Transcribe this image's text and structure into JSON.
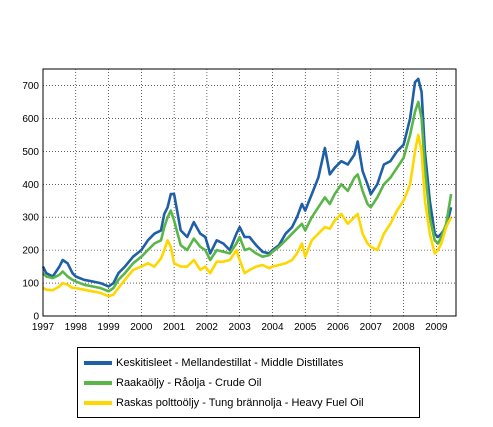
{
  "chart_data": {
    "type": "line",
    "title": "",
    "xlabel": "",
    "ylabel": "",
    "xlim": [
      1997,
      2009.6
    ],
    "ylim": [
      0,
      750
    ],
    "x_ticks": [
      "1997",
      "1998",
      "1999",
      "2000",
      "2001",
      "2002",
      "2003",
      "2004",
      "2005",
      "2006",
      "2007",
      "2008",
      "2009"
    ],
    "y_ticks": [
      "0",
      "100",
      "200",
      "300",
      "400",
      "500",
      "600",
      "700"
    ],
    "grid": "dotted",
    "legend": "bottom",
    "series": [
      {
        "name": "Keskitisleet - Mellandestillat - Middle Distillates",
        "color": "#1f5fa6",
        "x": [
          1997.0,
          1997.1,
          1997.3,
          1997.5,
          1997.6,
          1997.75,
          1997.9,
          1998.0,
          1998.25,
          1998.5,
          1998.75,
          1999.0,
          1999.15,
          1999.3,
          1999.5,
          1999.75,
          2000.0,
          2000.2,
          2000.4,
          2000.6,
          2000.7,
          2000.8,
          2000.9,
          2001.0,
          2001.2,
          2001.4,
          2001.6,
          2001.8,
          2001.95,
          2002.1,
          2002.3,
          2002.5,
          2002.7,
          2002.9,
          2003.0,
          2003.15,
          2003.3,
          2003.5,
          2003.7,
          2003.9,
          2004.0,
          2004.2,
          2004.4,
          2004.6,
          2004.75,
          2004.9,
          2005.0,
          2005.2,
          2005.4,
          2005.6,
          2005.75,
          2005.9,
          2006.1,
          2006.3,
          2006.5,
          2006.6,
          2006.75,
          2006.9,
          2007.0,
          2007.2,
          2007.4,
          2007.6,
          2007.8,
          2008.0,
          2008.2,
          2008.35,
          2008.45,
          2008.55,
          2008.65,
          2008.8,
          2008.95,
          2009.05,
          2009.15,
          2009.3,
          2009.45
        ],
        "y": [
          150,
          130,
          120,
          150,
          170,
          160,
          130,
          120,
          110,
          105,
          100,
          90,
          100,
          130,
          150,
          180,
          200,
          230,
          250,
          260,
          310,
          330,
          370,
          370,
          260,
          240,
          285,
          250,
          240,
          190,
          230,
          220,
          200,
          250,
          270,
          240,
          240,
          215,
          195,
          190,
          200,
          215,
          250,
          270,
          300,
          340,
          320,
          370,
          420,
          510,
          430,
          450,
          470,
          460,
          490,
          530,
          440,
          400,
          370,
          400,
          460,
          470,
          500,
          520,
          600,
          710,
          720,
          680,
          500,
          350,
          250,
          240,
          250,
          270,
          330
        ]
      },
      {
        "name": "Raakaöljy - Råolja - Crude Oil",
        "color": "#5ab648",
        "x": [
          1997.0,
          1997.1,
          1997.3,
          1997.5,
          1997.6,
          1997.75,
          1997.9,
          1998.0,
          1998.25,
          1998.5,
          1998.75,
          1999.0,
          1999.15,
          1999.3,
          1999.5,
          1999.75,
          2000.0,
          2000.2,
          2000.4,
          2000.6,
          2000.7,
          2000.8,
          2000.9,
          2001.0,
          2001.2,
          2001.4,
          2001.6,
          2001.8,
          2001.95,
          2002.1,
          2002.3,
          2002.5,
          2002.7,
          2002.9,
          2003.0,
          2003.15,
          2003.3,
          2003.5,
          2003.7,
          2003.9,
          2004.0,
          2004.2,
          2004.4,
          2004.6,
          2004.75,
          2004.9,
          2005.0,
          2005.2,
          2005.4,
          2005.6,
          2005.75,
          2005.9,
          2006.1,
          2006.3,
          2006.5,
          2006.6,
          2006.75,
          2006.9,
          2007.0,
          2007.2,
          2007.4,
          2007.6,
          2007.8,
          2008.0,
          2008.2,
          2008.35,
          2008.45,
          2008.55,
          2008.65,
          2008.8,
          2008.95,
          2009.05,
          2009.15,
          2009.3,
          2009.45
        ],
        "y": [
          130,
          120,
          115,
          125,
          135,
          120,
          110,
          105,
          95,
          90,
          85,
          75,
          85,
          110,
          130,
          160,
          180,
          200,
          220,
          230,
          270,
          300,
          320,
          290,
          215,
          200,
          235,
          210,
          200,
          170,
          200,
          195,
          190,
          220,
          240,
          200,
          205,
          190,
          180,
          185,
          195,
          210,
          230,
          250,
          265,
          280,
          260,
          300,
          330,
          360,
          340,
          370,
          400,
          380,
          420,
          430,
          380,
          340,
          330,
          360,
          400,
          420,
          450,
          480,
          550,
          620,
          650,
          600,
          450,
          300,
          230,
          220,
          240,
          280,
          370
        ]
      },
      {
        "name": "Raskas polttoöljy - Tung brännolja - Heavy Fuel Oil",
        "color": "#ffd700",
        "x": [
          1997.0,
          1997.1,
          1997.3,
          1997.5,
          1997.6,
          1997.75,
          1997.9,
          1998.0,
          1998.25,
          1998.5,
          1998.75,
          1999.0,
          1999.15,
          1999.3,
          1999.5,
          1999.75,
          2000.0,
          2000.2,
          2000.4,
          2000.6,
          2000.7,
          2000.8,
          2000.9,
          2001.0,
          2001.2,
          2001.4,
          2001.6,
          2001.8,
          2001.95,
          2002.1,
          2002.3,
          2002.5,
          2002.7,
          2002.9,
          2003.0,
          2003.15,
          2003.3,
          2003.5,
          2003.7,
          2003.9,
          2004.0,
          2004.2,
          2004.4,
          2004.6,
          2004.75,
          2004.9,
          2005.0,
          2005.2,
          2005.4,
          2005.6,
          2005.75,
          2005.9,
          2006.1,
          2006.3,
          2006.5,
          2006.6,
          2006.75,
          2006.9,
          2007.0,
          2007.2,
          2007.4,
          2007.6,
          2007.8,
          2008.0,
          2008.2,
          2008.35,
          2008.45,
          2008.55,
          2008.65,
          2008.8,
          2008.95,
          2009.05,
          2009.15,
          2009.3,
          2009.45
        ],
        "y": [
          85,
          80,
          78,
          90,
          100,
          95,
          85,
          85,
          80,
          75,
          70,
          60,
          65,
          85,
          110,
          140,
          150,
          160,
          150,
          175,
          200,
          230,
          210,
          160,
          150,
          150,
          170,
          140,
          150,
          130,
          165,
          165,
          170,
          200,
          170,
          130,
          140,
          150,
          155,
          145,
          150,
          155,
          160,
          170,
          190,
          220,
          180,
          230,
          250,
          270,
          265,
          290,
          310,
          280,
          300,
          310,
          250,
          220,
          210,
          200,
          250,
          280,
          320,
          350,
          400,
          500,
          550,
          500,
          350,
          250,
          190,
          200,
          220,
          270,
          300
        ]
      }
    ]
  }
}
